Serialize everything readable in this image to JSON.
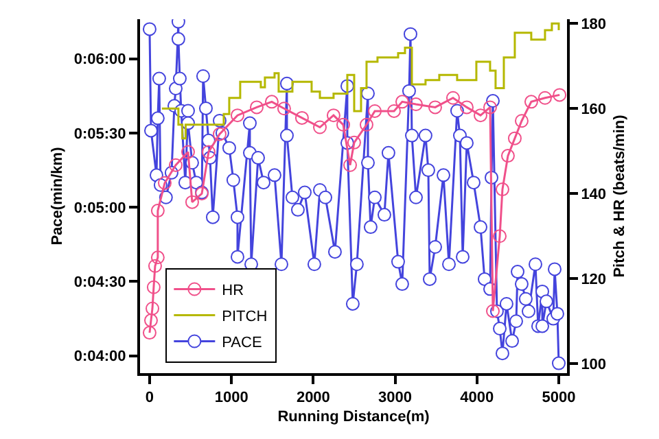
{
  "chart_data": {
    "type": "line",
    "xlabel": "Running Distance(m)",
    "ylabel": "Pace(min/km)",
    "y2label": "Pitch & HR (beats/min)",
    "xlim": [
      -117,
      5101
    ],
    "xticks": [
      0,
      1000,
      2000,
      3000,
      4000,
      5000
    ],
    "ylim": [
      233,
      376
    ],
    "yticks": [
      {
        "value": 240,
        "label": "0:04:00"
      },
      {
        "value": 270,
        "label": "0:04:30"
      },
      {
        "value": 300,
        "label": "0:05:00"
      },
      {
        "value": 330,
        "label": "0:05:30"
      },
      {
        "value": 360,
        "label": "0:06:00"
      }
    ],
    "y2lim": [
      97.8,
      181
    ],
    "y2ticks": [
      100,
      120,
      140,
      160,
      180
    ],
    "grid": false,
    "legend": "bottom left",
    "marker": "circle",
    "series": [
      {
        "name": "HR",
        "axis": "y2",
        "color": "#f0508a",
        "x": [
          0,
          17,
          34,
          50,
          67,
          100,
          100,
          185,
          319,
          470,
          520,
          638,
          721,
          856,
          1074,
          1309,
          1493,
          1644,
          1862,
          2081,
          2248,
          2366,
          2450,
          2500,
          2651,
          2752,
          2987,
          3087,
          3255,
          3490,
          3708,
          3876,
          4044,
          4161,
          4195,
          4279,
          4312,
          4379,
          4463,
          4547,
          4664,
          4832,
          5010
        ],
        "values": [
          107.3,
          110.2,
          113,
          118,
          123,
          125,
          136,
          142.5,
          146.7,
          149.8,
          138,
          140,
          149.8,
          154,
          158.4,
          160.3,
          161.6,
          160,
          157.8,
          155.6,
          158.4,
          156.2,
          146.7,
          152,
          156.2,
          159.4,
          159.4,
          161.6,
          161,
          160.3,
          162.5,
          160.3,
          158.4,
          160.3,
          112.4,
          130,
          141,
          148.9,
          153,
          157.1,
          161.6,
          162.5,
          163.2
        ]
      },
      {
        "name": "PITCH",
        "type": "step",
        "axis": "y2",
        "color": "#b5b800",
        "marker": "none",
        "x": [
          150,
          352,
          400,
          440,
          720,
          906,
          973,
          1107,
          1359,
          1409,
          1527,
          1577,
          1745,
          1980,
          2081,
          2248,
          2416,
          2500,
          2584,
          2651,
          2785,
          3037,
          3121,
          3205,
          3372,
          3540,
          3758,
          3993,
          4161,
          4228,
          4329,
          4463,
          4664,
          4832,
          4916,
          5000
        ],
        "values": [
          160,
          156.2,
          153,
          156.2,
          156.2,
          158.7,
          162.5,
          166.3,
          165,
          167.3,
          168.3,
          164,
          166.3,
          164,
          162.5,
          163.5,
          167.9,
          159.4,
          164.8,
          171,
          172,
          173,
          174.3,
          165.7,
          166.7,
          167.9,
          166.7,
          171,
          168.9,
          164.8,
          172,
          177.8,
          176.2,
          178.4,
          180,
          178.4
        ]
      },
      {
        "name": "PACE",
        "axis": "y",
        "color": "#4444dd",
        "x": [
          0,
          17,
          84,
          100,
          117,
          134,
          200,
          268,
          302,
          319,
          352,
          352,
          369,
          386,
          436,
          470,
          470,
          520,
          570,
          638,
          654,
          688,
          721,
          738,
          772,
          856,
          889,
          973,
          1023,
          1074,
          1074,
          1225,
          1225,
          1242,
          1326,
          1393,
          1527,
          1611,
          1678,
          1678,
          1745,
          1812,
          1896,
          2013,
          2081,
          2148,
          2265,
          2416,
          2416,
          2483,
          2533,
          2668,
          2668,
          2701,
          2752,
          2869,
          2919,
          3037,
          3087,
          3171,
          3188,
          3205,
          3255,
          3372,
          3406,
          3423,
          3490,
          3591,
          3658,
          3758,
          3792,
          3826,
          3876,
          3960,
          4044,
          4094,
          4161,
          4178,
          4195,
          4245,
          4279,
          4312,
          4362,
          4430,
          4480,
          4497,
          4547,
          4597,
          4631,
          4715,
          4748,
          4799,
          4799,
          4849,
          4933,
          4950,
          4983,
          5000
        ],
        "values": [
          372,
          331,
          313,
          336,
          352,
          309,
          304,
          314,
          341,
          348,
          375,
          368,
          352,
          339,
          310,
          339,
          334,
          318,
          310,
          306,
          353,
          340,
          327,
          320,
          296,
          335,
          330,
          324,
          311,
          296,
          280,
          334,
          322,
          277,
          320,
          310,
          313,
          277,
          350,
          329,
          304,
          299,
          306,
          277,
          307,
          304,
          282,
          349,
          326,
          261,
          277,
          346,
          318,
          292,
          304,
          297,
          322,
          278,
          269,
          347,
          370,
          329,
          304,
          329,
          315,
          271,
          284,
          313,
          277,
          339,
          329,
          280,
          326,
          310,
          292,
          271,
          267,
          312,
          343,
          258,
          251,
          241,
          261,
          246,
          254,
          274,
          269,
          263,
          258,
          277,
          252,
          266,
          252,
          262,
          255,
          275,
          257,
          237
        ]
      }
    ]
  }
}
